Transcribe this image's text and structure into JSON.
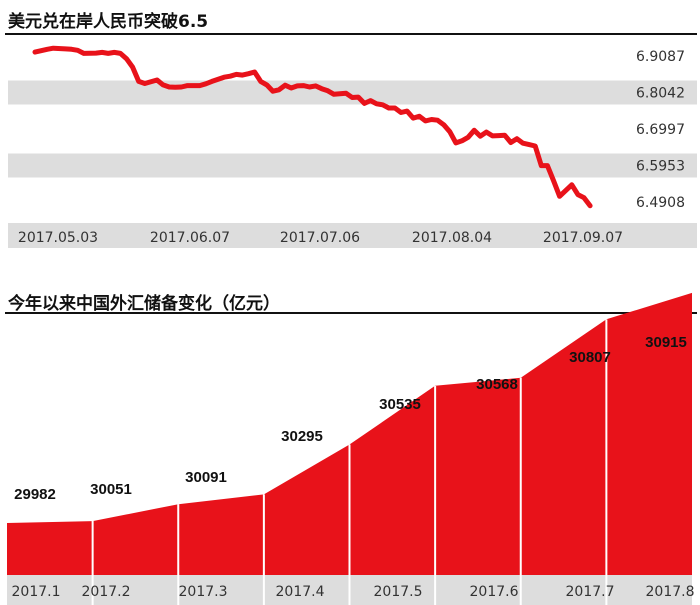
{
  "charts": {
    "exchange": {
      "title": "美元兑在岸人民币突破6.5"
    },
    "reserves": {
      "title": "今年以来中国外汇储备变化（亿元）"
    }
  },
  "colors": {
    "series": "#e8121a",
    "band": "#dddddd",
    "rule": "#111111"
  },
  "chart_data": [
    {
      "type": "line",
      "title": "美元兑在岸人民币突破6.5",
      "xlabel": "",
      "ylabel": "",
      "x_tick_labels": [
        "2017.05.03",
        "2017.06.07",
        "2017.07.06",
        "2017.08.04",
        "2017.09.07"
      ],
      "y_ticks": [
        6.9087,
        6.8042,
        6.6997,
        6.5953,
        6.4908
      ],
      "ylim": [
        6.46,
        6.95
      ],
      "grid": "alternating horizontal bands",
      "series": [
        {
          "x_index": [
            0,
            2,
            3,
            5,
            6,
            7,
            8,
            10,
            11,
            12,
            13,
            14,
            15,
            16,
            17,
            18,
            20,
            21,
            22,
            23,
            24,
            25,
            26,
            27,
            28,
            29,
            31,
            32,
            33,
            34,
            35,
            36,
            37,
            38,
            39,
            40,
            41,
            42,
            43,
            44,
            45,
            46,
            47,
            48,
            49,
            51,
            52,
            53,
            54,
            55,
            56,
            57,
            58,
            59,
            60,
            61,
            62,
            63,
            64,
            65,
            66,
            67,
            68,
            69,
            70,
            71,
            72,
            73,
            74,
            75,
            76,
            77,
            78,
            79,
            80,
            81,
            82,
            83,
            84,
            85,
            86,
            88,
            89,
            90,
            91
          ],
          "values": [
            6.92,
            6.928,
            6.931,
            6.929,
            6.928,
            6.925,
            6.916,
            6.917,
            6.919,
            6.916,
            6.919,
            6.916,
            6.901,
            6.877,
            6.836,
            6.83,
            6.84,
            6.826,
            6.82,
            6.819,
            6.82,
            6.824,
            6.824,
            6.824,
            6.829,
            6.836,
            6.848,
            6.851,
            6.856,
            6.854,
            6.858,
            6.863,
            6.836,
            6.826,
            6.808,
            6.812,
            6.825,
            6.817,
            6.823,
            6.824,
            6.82,
            6.823,
            6.815,
            6.809,
            6.799,
            6.802,
            6.79,
            6.791,
            6.773,
            6.781,
            6.772,
            6.769,
            6.76,
            6.76,
            6.747,
            6.751,
            6.731,
            6.736,
            6.723,
            6.727,
            6.725,
            6.712,
            6.692,
            6.66,
            6.666,
            6.676,
            6.696,
            6.679,
            6.691,
            6.68,
            6.681,
            6.682,
            6.661,
            6.672,
            6.659,
            6.655,
            6.651,
            6.595,
            6.595,
            6.552,
            6.507,
            6.54,
            6.512,
            6.503,
            6.48
          ]
        }
      ]
    },
    {
      "type": "area",
      "title": "今年以来中国外汇储备变化（亿元）",
      "categories": [
        "2017.1",
        "2017.2",
        "2017.3",
        "2017.4",
        "2017.5",
        "2017.6",
        "2017.7",
        "2017.8"
      ],
      "values": [
        29982,
        30051,
        30091,
        30295,
        30535,
        30568,
        30807,
        30915
      ],
      "xlabel": "",
      "ylabel": "",
      "ylim": [
        29700,
        31000
      ]
    }
  ]
}
